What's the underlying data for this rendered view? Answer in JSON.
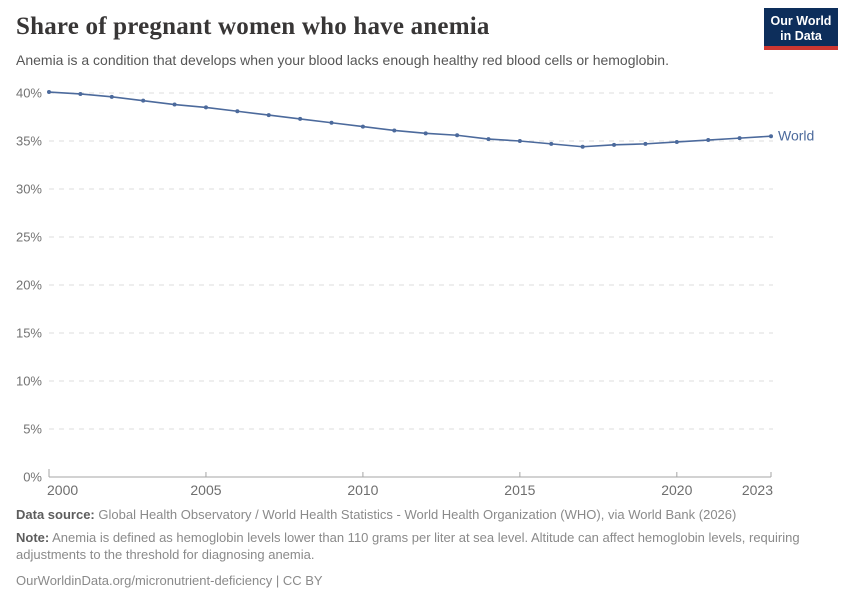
{
  "header": {
    "title": "Share of pregnant women who have anemia",
    "subtitle": "Anemia is a condition that develops when your blood lacks enough healthy red blood cells or hemoglobin.",
    "logo": {
      "line1": "Our World",
      "line2": "in Data"
    }
  },
  "chart_data": {
    "type": "line",
    "title": "Share of pregnant women who have anemia",
    "xlabel": "",
    "ylabel": "",
    "xlim": [
      2000,
      2023
    ],
    "ylim": [
      0,
      40
    ],
    "x_ticks": [
      2000,
      2005,
      2010,
      2015,
      2020,
      2023
    ],
    "y_ticks": [
      0,
      5,
      10,
      15,
      20,
      25,
      30,
      35,
      40
    ],
    "y_tick_suffix": "%",
    "grid": "dashed-horizontal",
    "legend": "end-of-line-label",
    "series": [
      {
        "name": "World",
        "color": "#4C6A9C",
        "x": [
          2000,
          2001,
          2002,
          2003,
          2004,
          2005,
          2006,
          2007,
          2008,
          2009,
          2010,
          2011,
          2012,
          2013,
          2014,
          2015,
          2016,
          2017,
          2018,
          2019,
          2020,
          2021,
          2022,
          2023
        ],
        "values": [
          40.1,
          39.9,
          39.6,
          39.2,
          38.8,
          38.5,
          38.1,
          37.7,
          37.3,
          36.9,
          36.5,
          36.1,
          35.8,
          35.6,
          35.2,
          35.0,
          34.7,
          34.4,
          34.6,
          34.7,
          34.9,
          35.1,
          35.3,
          35.5
        ]
      }
    ]
  },
  "footer": {
    "data_source_label": "Data source:",
    "data_source": "Global Health Observatory / World Health Statistics - World Health Organization (WHO), via World Bank (2026)",
    "note_label": "Note:",
    "note": "Anemia is defined as hemoglobin levels lower than 110 grams per liter at sea level. Altitude can affect hemoglobin levels, requiring adjustments to the threshold for diagnosing anemia.",
    "citation": "OurWorldinData.org/micronutrient-deficiency | CC BY"
  },
  "colors": {
    "accent_line": "#4C6A9C",
    "logo_bg": "#0d2e5b",
    "logo_red": "#cd3731",
    "title_text": "#383636",
    "muted_text": "#8a8a8a"
  }
}
